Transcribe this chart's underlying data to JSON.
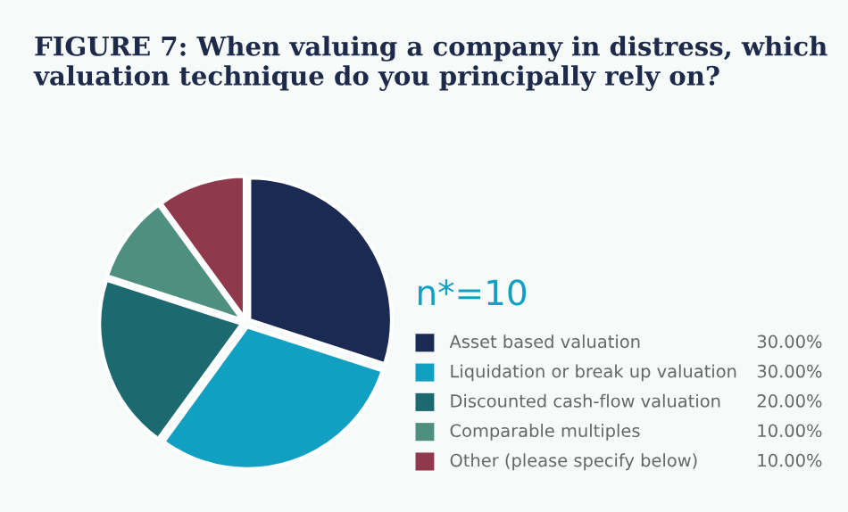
{
  "chart_data": {
    "type": "pie",
    "title": "FIGURE 7: When valuing a company in distress, which valuation technique do you principally rely on?",
    "categories": [
      "Asset based valuation",
      "Liquidation or break up valuation",
      "Discounted cash-flow valuation",
      "Comparable multiples",
      "Other (please specify below)"
    ],
    "values": [
      30,
      30,
      20,
      10,
      10
    ],
    "value_labels": [
      "30.00%",
      "30.00%",
      "20.00%",
      "10.00%",
      "10.00%"
    ],
    "colors": [
      "#1b2a52",
      "#12a0c2",
      "#1c6a70",
      "#4e8f80",
      "#8f3a4c"
    ],
    "annotations": [
      "n*=10"
    ],
    "legend": "right"
  }
}
